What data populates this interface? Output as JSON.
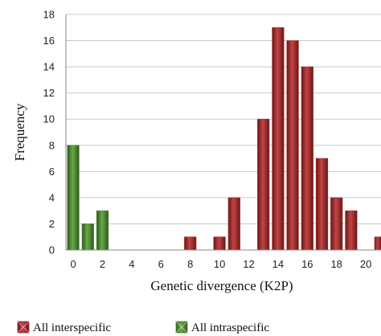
{
  "chart_data": {
    "type": "bar",
    "xlabel": "Genetic divergence (K2P)",
    "ylabel": "Frequency",
    "ylim": [
      0,
      18
    ],
    "yticks": [
      0,
      2,
      4,
      6,
      8,
      10,
      12,
      14,
      16,
      18
    ],
    "xlim": [
      -0.5,
      20.5
    ],
    "xticks": [
      0,
      2,
      4,
      6,
      8,
      10,
      12,
      14,
      16,
      18,
      20
    ],
    "grid": true,
    "legend_position": "bottom",
    "series": [
      {
        "name": "All interspecific",
        "color": "#a32a2a",
        "points": [
          {
            "x": 8,
            "y": 1
          },
          {
            "x": 10,
            "y": 1
          },
          {
            "x": 11,
            "y": 4
          },
          {
            "x": 13,
            "y": 10
          },
          {
            "x": 14,
            "y": 17
          },
          {
            "x": 15,
            "y": 16
          },
          {
            "x": 16,
            "y": 14
          },
          {
            "x": 17,
            "y": 7
          },
          {
            "x": 18,
            "y": 4
          },
          {
            "x": 19,
            "y": 3
          },
          {
            "x": 21,
            "y": 1
          }
        ]
      },
      {
        "name": "All intraspecific",
        "color": "#4a8a2e",
        "points": [
          {
            "x": 0,
            "y": 8
          },
          {
            "x": 1,
            "y": 2
          },
          {
            "x": 2,
            "y": 3
          }
        ]
      }
    ]
  }
}
